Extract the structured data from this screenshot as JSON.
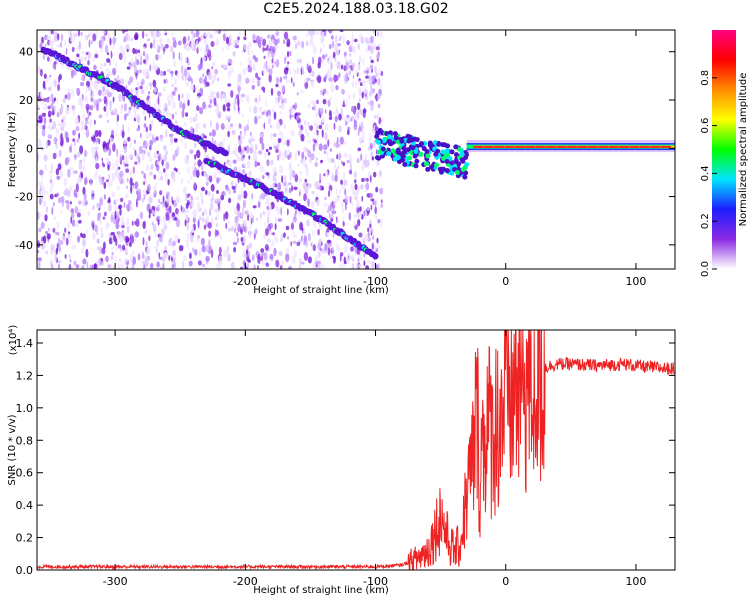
{
  "chart_data": [
    {
      "type": "heatmap",
      "title": "C2E5.2024.188.03.18.G02",
      "xlabel": "Height of straight line (km)",
      "ylabel": "Frequency (Hz)",
      "xlim": [
        -360,
        130
      ],
      "ylim": [
        -50,
        49
      ],
      "xticks": [
        -300,
        -200,
        -100,
        0,
        100
      ],
      "yticks": [
        -40,
        -20,
        0,
        20,
        40
      ],
      "colorbar": {
        "label": "Normalized spectral amplitude",
        "range": [
          0,
          1
        ],
        "ticks": [
          "0.0",
          "0.2",
          "0.4",
          "0.6",
          "0.8"
        ],
        "colors": [
          "#ffffff",
          "#8a2be2",
          "#1e1eff",
          "#00e5ff",
          "#00ff00",
          "#ffff00",
          "#ff8c00",
          "#ff0000",
          "#ff0080"
        ]
      },
      "features": [
        {
          "name": "descending trace 1",
          "points": [
            [
              -355,
              41
            ],
            [
              -300,
              26
            ],
            [
              -250,
              7
            ],
            [
              -215,
              -2
            ]
          ]
        },
        {
          "name": "descending trace 2",
          "points": [
            [
              -230,
              -5
            ],
            [
              -180,
              -18
            ],
            [
              -140,
              -30
            ],
            [
              -100,
              -45
            ]
          ]
        },
        {
          "name": "carrier near 0 Hz",
          "points": [
            [
              -30,
              0.5
            ],
            [
              130,
              1.5
            ]
          ]
        }
      ]
    },
    {
      "type": "line",
      "xlabel": "Height of straight line (km)",
      "ylabel": "SNR (10 * v/v)",
      "scale_note": "(x10⁴)",
      "xlim": [
        -360,
        130
      ],
      "ylim": [
        0,
        1.48
      ],
      "xticks": [
        -300,
        -200,
        -100,
        0,
        100
      ],
      "yticks": [
        "0.0",
        "0.2",
        "0.4",
        "0.6",
        "0.8",
        "1.0",
        "1.2",
        "1.4"
      ],
      "line_color": "#ee2222",
      "series": [
        {
          "x": [
            -360,
            -300,
            -200,
            -120,
            -100,
            -80,
            -70,
            -60,
            -55,
            -50,
            -45,
            -40,
            -35,
            -30,
            -25,
            -22,
            -20,
            -18,
            -15,
            -10,
            -5,
            0,
            10,
            20,
            30,
            40,
            50,
            70,
            90,
            110,
            130
          ],
          "y": [
            0.02,
            0.02,
            0.02,
            0.02,
            0.02,
            0.03,
            0.06,
            0.12,
            0.22,
            0.35,
            0.2,
            0.12,
            0.15,
            0.45,
            0.7,
            1.0,
            0.55,
            0.78,
            0.9,
            0.85,
            0.95,
            1.05,
            1.12,
            1.2,
            1.25,
            1.27,
            1.27,
            1.26,
            1.27,
            1.25,
            1.24
          ]
        }
      ]
    }
  ]
}
